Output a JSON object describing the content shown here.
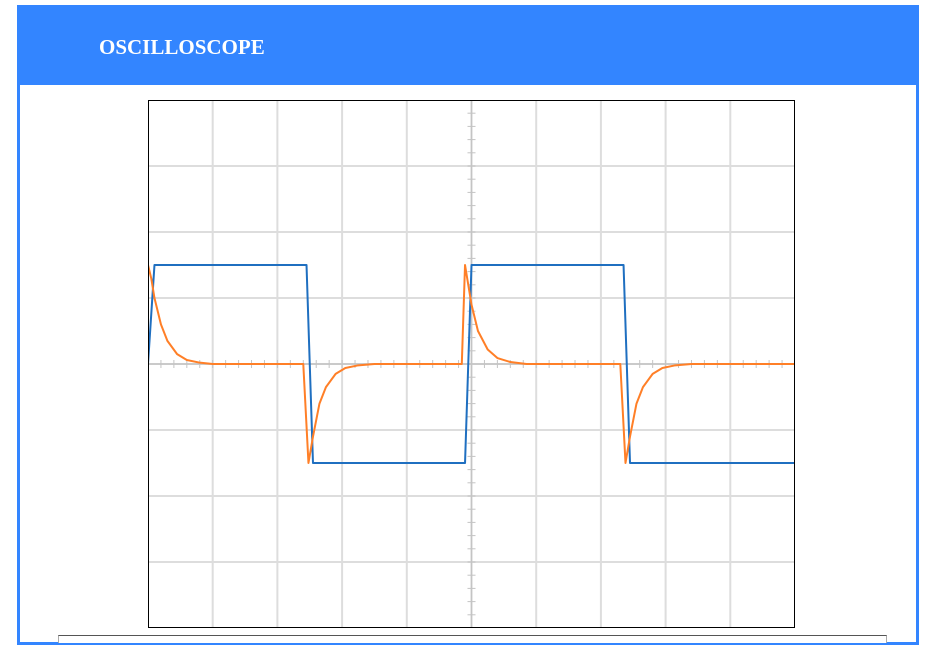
{
  "header": {
    "title": "OSCILLOSCOPE",
    "background": "#3385ff",
    "text_color": "#ffffff"
  },
  "chart_data": {
    "type": "line",
    "title": "",
    "xlabel": "",
    "ylabel": "",
    "grid": true,
    "grid_divisions": {
      "x": 10,
      "y": 8
    },
    "xlim": [
      0,
      10
    ],
    "ylim": [
      -4,
      4
    ],
    "series": [
      {
        "color": "#1f6fc0",
        "x": [
          0,
          0.1,
          2.45,
          2.55,
          4.9,
          5.0,
          7.35,
          7.45,
          10
        ],
        "y": [
          0,
          1.5,
          1.5,
          -1.5,
          -1.5,
          1.5,
          1.5,
          -1.5,
          -1.5
        ]
      },
      {
        "color": "#ff7f27",
        "x": [
          0,
          0.05,
          0.1,
          0.2,
          0.3,
          0.45,
          0.6,
          0.8,
          1.0,
          2.4,
          2.48,
          2.55,
          2.65,
          2.75,
          2.9,
          3.05,
          3.25,
          3.5,
          4.85,
          4.9,
          5.0,
          5.1,
          5.25,
          5.4,
          5.6,
          5.85,
          7.3,
          7.38,
          7.45,
          7.55,
          7.65,
          7.8,
          7.95,
          8.15,
          8.4,
          10
        ],
        "y": [
          1.5,
          1.3,
          1.0,
          0.6,
          0.35,
          0.15,
          0.06,
          0.02,
          0,
          0,
          -1.5,
          -1.1,
          -0.6,
          -0.35,
          -0.15,
          -0.06,
          -0.02,
          0,
          0,
          1.5,
          0.9,
          0.5,
          0.22,
          0.09,
          0.03,
          0,
          0,
          -1.5,
          -1.1,
          -0.6,
          -0.35,
          -0.15,
          -0.06,
          -0.02,
          0,
          0
        ]
      }
    ]
  }
}
